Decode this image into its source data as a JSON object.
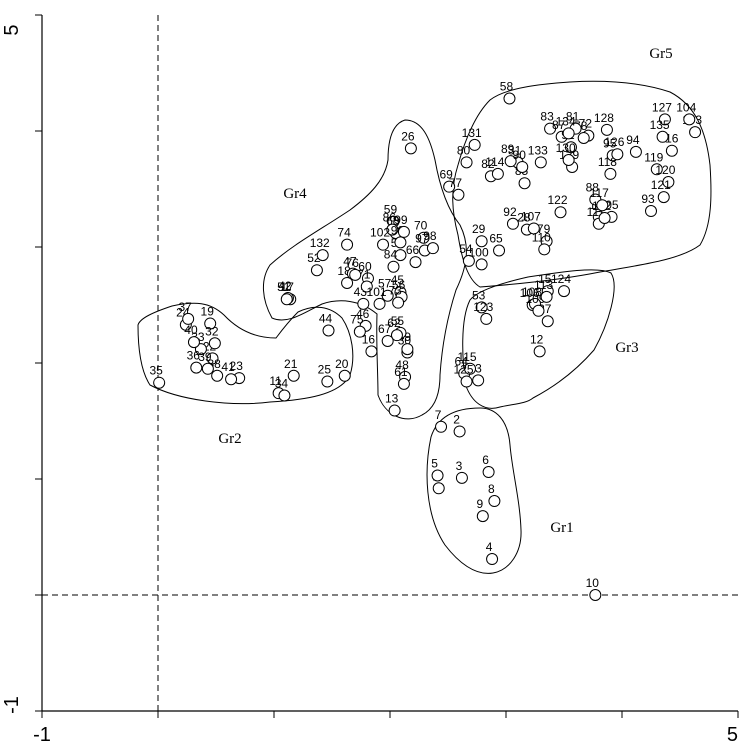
{
  "chart_data": {
    "type": "scatter",
    "title": "",
    "xlabel": "",
    "ylabel": "",
    "xlim": [
      -1,
      5
    ],
    "ylim": [
      -1,
      5
    ],
    "x_tick_labels": [
      "-1",
      "5"
    ],
    "y_tick_labels": [
      "-1",
      "5"
    ],
    "reference_lines": {
      "x": 0,
      "y": 0,
      "style": "dashed"
    },
    "points": [
      {
        "label": "1",
        "x": 2.42,
        "y": 0.92
      },
      {
        "label": "2",
        "x": 2.6,
        "y": 1.41
      },
      {
        "label": "3",
        "x": 2.62,
        "y": 1.01
      },
      {
        "label": "4",
        "x": 2.88,
        "y": 0.31
      },
      {
        "label": "5",
        "x": 2.41,
        "y": 1.03
      },
      {
        "label": "6",
        "x": 2.85,
        "y": 1.06
      },
      {
        "label": "7",
        "x": 2.44,
        "y": 1.45
      },
      {
        "label": "8",
        "x": 2.9,
        "y": 0.81
      },
      {
        "label": "9",
        "x": 2.8,
        "y": 0.68
      },
      {
        "label": "10",
        "x": 3.77,
        "y": 0.0
      },
      {
        "label": "11",
        "x": 1.04,
        "y": 1.74
      },
      {
        "label": "12",
        "x": 3.29,
        "y": 2.1
      },
      {
        "label": "13",
        "x": 2.04,
        "y": 1.59
      },
      {
        "label": "14",
        "x": 3.8,
        "y": 3.26
      },
      {
        "label": "15",
        "x": 3.36,
        "y": 2.62
      },
      {
        "label": "16",
        "x": 1.84,
        "y": 2.1
      },
      {
        "label": "17",
        "x": 1.14,
        "y": 2.55
      },
      {
        "label": "18",
        "x": 1.63,
        "y": 2.69
      },
      {
        "label": "19",
        "x": 0.45,
        "y": 2.34
      },
      {
        "label": "20",
        "x": 1.61,
        "y": 1.89
      },
      {
        "label": "21",
        "x": 1.17,
        "y": 1.89
      },
      {
        "label": "22",
        "x": 0.47,
        "y": 2.04
      },
      {
        "label": "23",
        "x": 0.7,
        "y": 1.87
      },
      {
        "label": "24",
        "x": 0.24,
        "y": 2.33
      },
      {
        "label": "25",
        "x": 1.46,
        "y": 1.84
      },
      {
        "label": "26",
        "x": 2.18,
        "y": 3.85
      },
      {
        "label": "27",
        "x": 3.36,
        "y": 2.36
      },
      {
        "label": "28",
        "x": 3.18,
        "y": 3.15
      },
      {
        "label": "29",
        "x": 2.79,
        "y": 3.05
      },
      {
        "label": "30",
        "x": 2.15,
        "y": 2.09
      },
      {
        "label": "31",
        "x": 3.1,
        "y": 3.73
      },
      {
        "label": "32",
        "x": 0.49,
        "y": 2.17
      },
      {
        "label": "33",
        "x": 0.37,
        "y": 2.12
      },
      {
        "label": "34",
        "x": 1.09,
        "y": 1.72
      },
      {
        "label": "35",
        "x": 0.01,
        "y": 1.83
      },
      {
        "label": "36",
        "x": 0.33,
        "y": 1.96
      },
      {
        "label": "37",
        "x": 0.26,
        "y": 2.38
      },
      {
        "label": "38",
        "x": 0.51,
        "y": 1.89
      },
      {
        "label": "39",
        "x": 0.43,
        "y": 1.95
      },
      {
        "label": "40",
        "x": 0.31,
        "y": 2.18
      },
      {
        "label": "41",
        "x": 0.63,
        "y": 1.86
      },
      {
        "label": "42",
        "x": 1.12,
        "y": 2.56
      },
      {
        "label": "43",
        "x": 1.77,
        "y": 2.51
      },
      {
        "label": "44",
        "x": 1.47,
        "y": 2.28
      },
      {
        "label": "45",
        "x": 2.09,
        "y": 2.61
      },
      {
        "label": "46",
        "x": 1.79,
        "y": 2.32
      },
      {
        "label": "47",
        "x": 1.68,
        "y": 2.77
      },
      {
        "label": "48",
        "x": 2.13,
        "y": 1.88
      },
      {
        "label": "49",
        "x": 2.15,
        "y": 2.12
      },
      {
        "label": "50",
        "x": 2.09,
        "y": 2.93
      },
      {
        "label": "51",
        "x": 1.11,
        "y": 2.55
      },
      {
        "label": "52",
        "x": 1.37,
        "y": 2.8
      },
      {
        "label": "53",
        "x": 2.79,
        "y": 2.48
      },
      {
        "label": "54",
        "x": 2.68,
        "y": 2.88
      },
      {
        "label": "55",
        "x": 2.09,
        "y": 2.26
      },
      {
        "label": "56",
        "x": 2.1,
        "y": 2.57
      },
      {
        "label": "57",
        "x": 1.98,
        "y": 2.58
      },
      {
        "label": "58",
        "x": 3.03,
        "y": 4.28
      },
      {
        "label": "59",
        "x": 2.03,
        "y": 3.22
      },
      {
        "label": "60",
        "x": 1.81,
        "y": 2.73
      },
      {
        "label": "61",
        "x": 2.12,
        "y": 1.82
      },
      {
        "label": "62",
        "x": 2.06,
        "y": 2.24
      },
      {
        "label": "63",
        "x": 2.76,
        "y": 1.85
      },
      {
        "label": "64",
        "x": 2.64,
        "y": 1.91
      },
      {
        "label": "65",
        "x": 2.94,
        "y": 2.97
      },
      {
        "label": "66",
        "x": 2.22,
        "y": 2.87
      },
      {
        "label": "67",
        "x": 1.98,
        "y": 2.19
      },
      {
        "label": "68",
        "x": 2.05,
        "y": 3.12
      },
      {
        "label": "69",
        "x": 2.51,
        "y": 3.52
      },
      {
        "label": "70",
        "x": 2.29,
        "y": 3.08
      },
      {
        "label": "71",
        "x": 1.8,
        "y": 2.66
      },
      {
        "label": "72",
        "x": 3.71,
        "y": 3.96
      },
      {
        "label": "73",
        "x": 2.07,
        "y": 2.52
      },
      {
        "label": "74",
        "x": 1.63,
        "y": 3.02
      },
      {
        "label": "75",
        "x": 1.74,
        "y": 2.27
      },
      {
        "label": "76",
        "x": 1.7,
        "y": 2.76
      },
      {
        "label": "77",
        "x": 2.59,
        "y": 3.45
      },
      {
        "label": "78",
        "x": 3.67,
        "y": 3.94
      },
      {
        "label": "79",
        "x": 3.35,
        "y": 3.05
      },
      {
        "label": "80",
        "x": 2.66,
        "y": 3.73
      },
      {
        "label": "81",
        "x": 3.6,
        "y": 4.02
      },
      {
        "label": "82",
        "x": 2.87,
        "y": 3.61
      },
      {
        "label": "83",
        "x": 3.38,
        "y": 4.02
      },
      {
        "label": "84",
        "x": 2.03,
        "y": 2.83
      },
      {
        "label": "85",
        "x": 3.16,
        "y": 3.55
      },
      {
        "label": "86",
        "x": 2.02,
        "y": 3.15
      },
      {
        "label": "87",
        "x": 3.48,
        "y": 3.95
      },
      {
        "label": "88",
        "x": 3.77,
        "y": 3.41
      },
      {
        "label": "89",
        "x": 3.04,
        "y": 3.74
      },
      {
        "label": "90",
        "x": 3.14,
        "y": 3.69
      },
      {
        "label": "91",
        "x": 3.56,
        "y": 3.86
      },
      {
        "label": "92",
        "x": 3.06,
        "y": 3.2
      },
      {
        "label": "93",
        "x": 4.25,
        "y": 3.31
      },
      {
        "label": "94",
        "x": 4.12,
        "y": 3.82
      },
      {
        "label": "95",
        "x": 3.92,
        "y": 3.79
      },
      {
        "label": "96",
        "x": 2.09,
        "y": 3.04
      },
      {
        "label": "97",
        "x": 2.3,
        "y": 2.97
      },
      {
        "label": "98",
        "x": 2.37,
        "y": 2.99
      },
      {
        "label": "99",
        "x": 2.12,
        "y": 3.13
      },
      {
        "label": "100",
        "x": 2.79,
        "y": 2.85
      },
      {
        "label": "101",
        "x": 1.91,
        "y": 2.51
      },
      {
        "label": "102",
        "x": 1.94,
        "y": 3.02
      },
      {
        "label": "103",
        "x": 4.63,
        "y": 3.99
      },
      {
        "label": "104",
        "x": 4.58,
        "y": 4.1
      },
      {
        "label": "105",
        "x": 3.91,
        "y": 3.26
      },
      {
        "label": "106",
        "x": 3.23,
        "y": 2.5
      },
      {
        "label": "107",
        "x": 3.24,
        "y": 3.16
      },
      {
        "label": "108",
        "x": 3.25,
        "y": 2.51
      },
      {
        "label": "109",
        "x": 3.28,
        "y": 2.45
      },
      {
        "label": "110",
        "x": 3.33,
        "y": 2.98
      },
      {
        "label": "111",
        "x": 3.8,
        "y": 3.2
      },
      {
        "label": "112",
        "x": 3.85,
        "y": 3.25
      },
      {
        "label": "113",
        "x": 3.35,
        "y": 2.57
      },
      {
        "label": "114",
        "x": 2.93,
        "y": 3.63
      },
      {
        "label": "115",
        "x": 2.69,
        "y": 1.95
      },
      {
        "label": "116",
        "x": 4.43,
        "y": 3.83
      },
      {
        "label": "117",
        "x": 3.83,
        "y": 3.36
      },
      {
        "label": "118",
        "x": 3.9,
        "y": 3.63
      },
      {
        "label": "119",
        "x": 4.3,
        "y": 3.67
      },
      {
        "label": "120",
        "x": 4.4,
        "y": 3.56
      },
      {
        "label": "121",
        "x": 4.36,
        "y": 3.43
      },
      {
        "label": "122",
        "x": 3.47,
        "y": 3.3
      },
      {
        "label": "123",
        "x": 2.83,
        "y": 2.38
      },
      {
        "label": "124",
        "x": 3.5,
        "y": 2.62
      },
      {
        "label": "125",
        "x": 2.66,
        "y": 1.84
      },
      {
        "label": "126",
        "x": 3.96,
        "y": 3.8
      },
      {
        "label": "127",
        "x": 4.37,
        "y": 4.1
      },
      {
        "label": "128",
        "x": 3.87,
        "y": 4.01
      },
      {
        "label": "129",
        "x": 3.57,
        "y": 3.69
      },
      {
        "label": "130",
        "x": 3.54,
        "y": 3.75
      },
      {
        "label": "131",
        "x": 2.73,
        "y": 3.88
      },
      {
        "label": "132",
        "x": 1.42,
        "y": 2.93
      },
      {
        "label": "133",
        "x": 3.3,
        "y": 3.73
      },
      {
        "label": "134",
        "x": 3.54,
        "y": 3.98
      },
      {
        "label": "135",
        "x": 4.35,
        "y": 3.95
      }
    ],
    "groups": [
      "Gr1",
      "Gr2",
      "Gr3",
      "Gr4",
      "Gr5"
    ]
  }
}
